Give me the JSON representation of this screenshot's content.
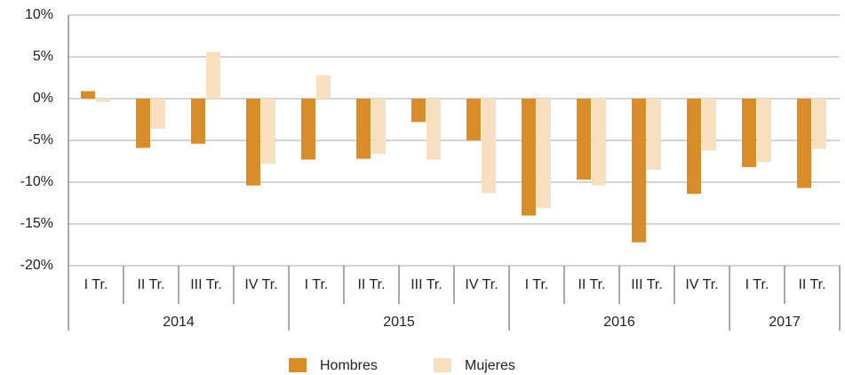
{
  "chart_data": {
    "type": "bar",
    "groups": [
      {
        "label": "2014",
        "categories": [
          "I Tr.",
          "II Tr.",
          "III Tr.",
          "IV Tr."
        ]
      },
      {
        "label": "2015",
        "categories": [
          "I Tr.",
          "II Tr.",
          "III Tr.",
          "IV Tr."
        ]
      },
      {
        "label": "2016",
        "categories": [
          "I Tr.",
          "II Tr.",
          "III Tr.",
          "IV Tr."
        ]
      },
      {
        "label": "2017",
        "categories": [
          "I Tr.",
          "II Tr."
        ]
      }
    ],
    "series": [
      {
        "name": "Hombres",
        "color": "#d98c2a",
        "values": [
          0.9,
          -5.9,
          -5.4,
          -10.4,
          -7.3,
          -7.2,
          -2.8,
          -5.0,
          -14.0,
          -9.7,
          -17.2,
          -11.4,
          -8.2,
          -10.7
        ]
      },
      {
        "name": "Mujeres",
        "color": "#f7dfc0",
        "values": [
          -0.4,
          -3.6,
          5.6,
          -7.8,
          2.8,
          -6.6,
          -7.3,
          -11.3,
          -13.1,
          -10.4,
          -8.5,
          -6.2,
          -7.6,
          -6.0
        ]
      }
    ],
    "ylim": [
      -20,
      10
    ],
    "yticks": [
      {
        "value": -20,
        "label": "-20%"
      },
      {
        "value": -15,
        "label": "-15%"
      },
      {
        "value": -10,
        "label": "-10%"
      },
      {
        "value": -5,
        "label": "-5%"
      },
      {
        "value": 0,
        "label": "0%"
      },
      {
        "value": 5,
        "label": "5%"
      },
      {
        "value": 10,
        "label": "10%"
      }
    ],
    "grid": true
  }
}
